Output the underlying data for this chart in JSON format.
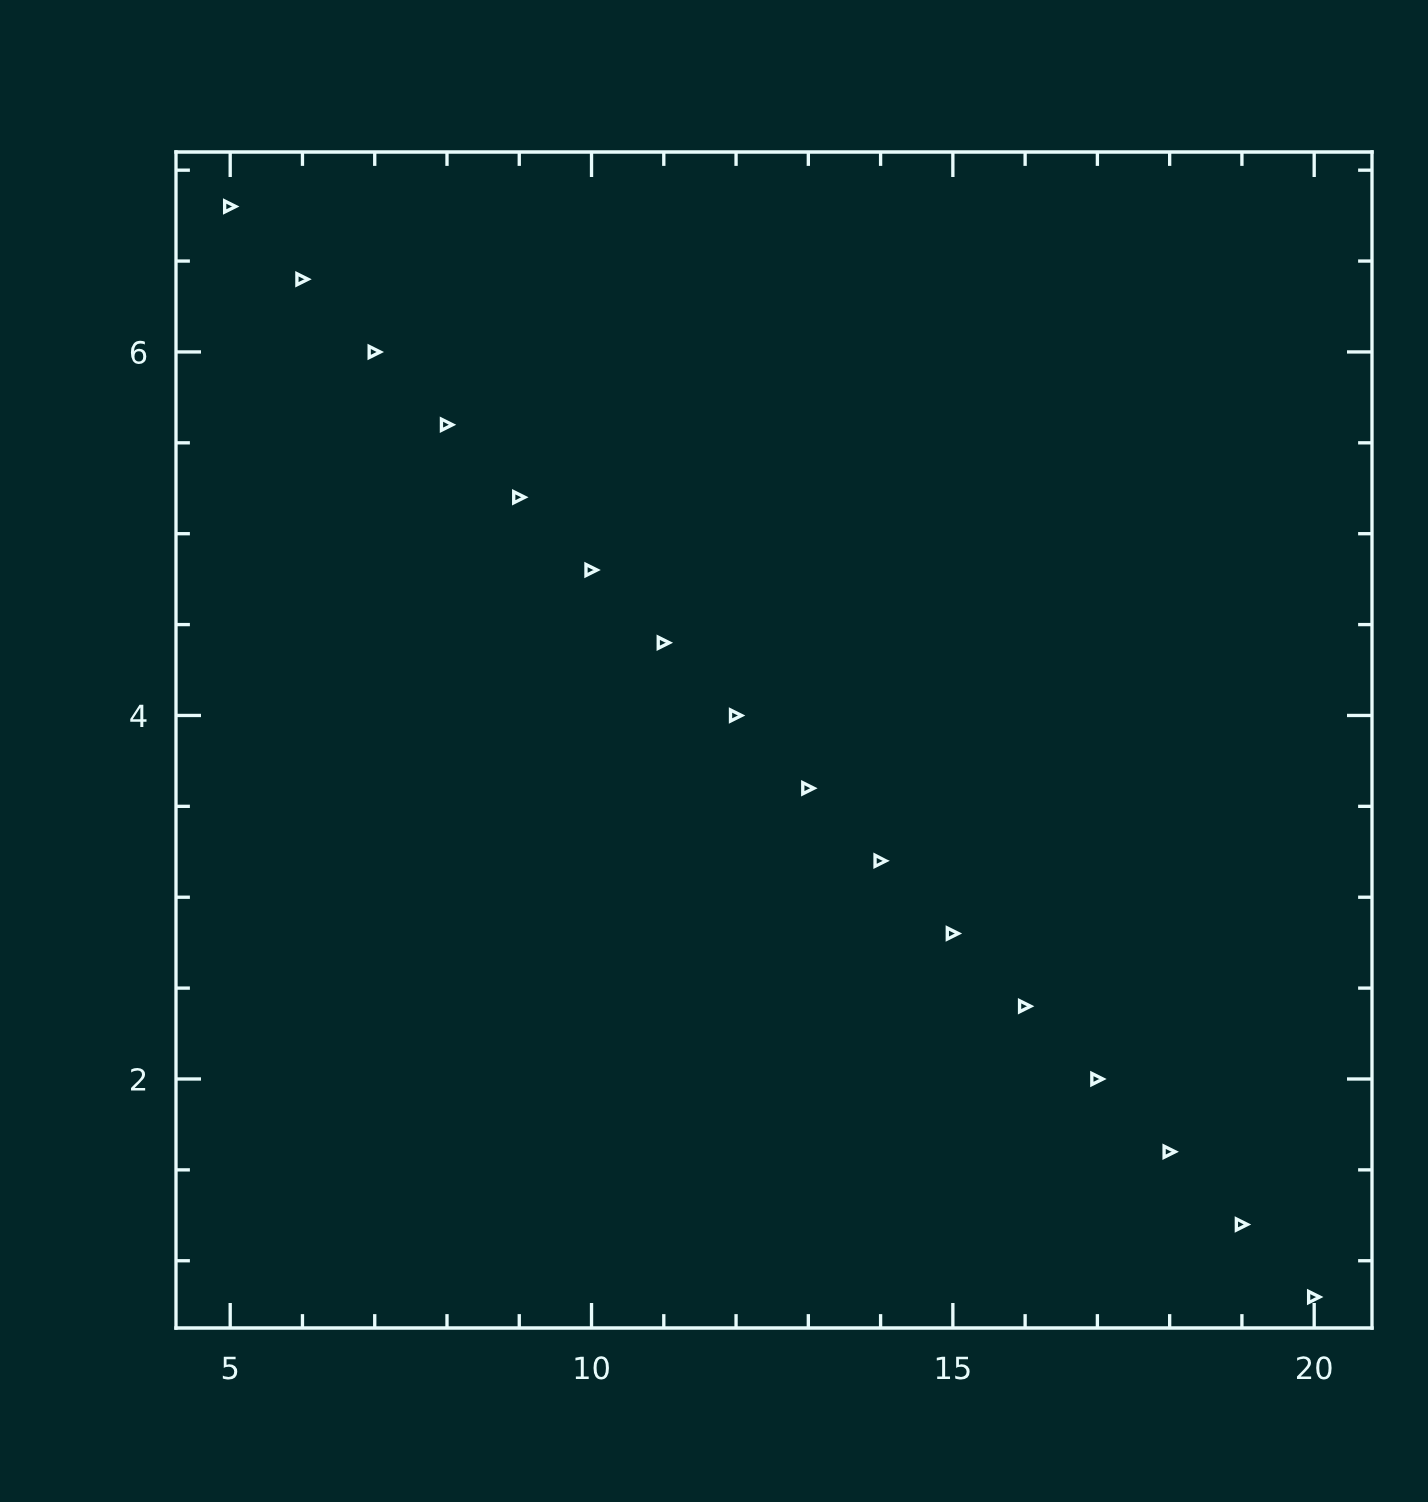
{
  "chart_data": {
    "type": "scatter",
    "x": [
      5,
      6,
      7,
      8,
      9,
      10,
      11,
      12,
      13,
      14,
      15,
      16,
      17,
      18,
      19,
      20
    ],
    "values": [
      6.8,
      6.4,
      6.0,
      5.6,
      5.2,
      4.8,
      4.4,
      4.0,
      3.6,
      3.2,
      2.8,
      2.4,
      2.0,
      1.6,
      1.2,
      0.8
    ],
    "color": "#e8fbfb",
    "marker": "triangle",
    "xlim": [
      4.25,
      20.8
    ],
    "ylim": [
      0.63,
      7.1
    ],
    "xticks": [
      5,
      {
        "value": 6,
        "label": null
      },
      {
        "value": 7,
        "label": null
      },
      {
        "value": 8,
        "label": null
      },
      {
        "value": 9,
        "label": null
      },
      10,
      {
        "value": 11,
        "label": null
      },
      {
        "value": 12,
        "label": null
      },
      {
        "value": 13,
        "label": null
      },
      {
        "value": 14,
        "label": null
      },
      15,
      {
        "value": 16,
        "label": null
      },
      {
        "value": 17,
        "label": null
      },
      {
        "value": 18,
        "label": null
      },
      {
        "value": 19,
        "label": null
      },
      20
    ],
    "yticks": [
      {
        "value": 1,
        "label": null
      },
      {
        "value": 1.5,
        "label": null
      },
      2,
      {
        "value": 2.5,
        "label": null
      },
      {
        "value": 3,
        "label": null
      },
      {
        "value": 3.5,
        "label": null
      },
      4,
      {
        "value": 4.5,
        "label": null
      },
      {
        "value": 5,
        "label": null
      },
      {
        "value": 5.5,
        "label": null
      },
      6,
      {
        "value": 6.5,
        "label": null
      },
      {
        "value": 7,
        "label": null
      }
    ],
    "grid": false
  }
}
